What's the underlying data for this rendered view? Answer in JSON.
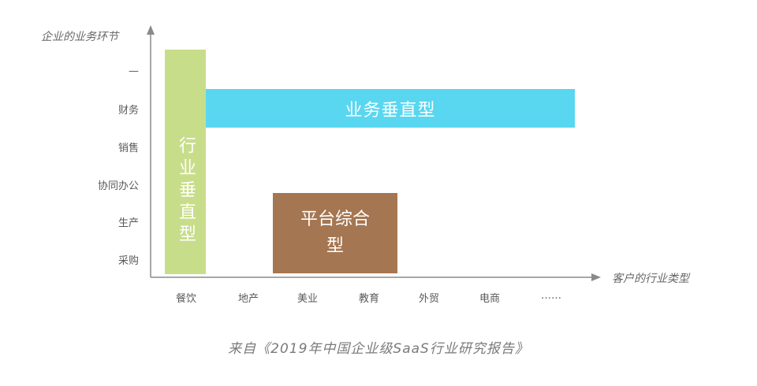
{
  "axes": {
    "y_title": "企业的业务环节",
    "x_title": "客户的行业类型",
    "y_labels": [
      "—",
      "财务",
      "销售",
      "协同办公",
      "生产",
      "采购"
    ],
    "x_labels": [
      "餐饮",
      "地产",
      "美业",
      "教育",
      "外贸",
      "电商",
      "……"
    ]
  },
  "blocks": {
    "industry_vertical": "行业垂直型",
    "business_vertical": "业务垂直型",
    "platform": "平台综合型"
  },
  "source": "来自《2019年中国企业级SaaS行业研究报告》",
  "colors": {
    "industry_vertical": "#c8dd8a",
    "business_vertical": "#59d6f0",
    "platform": "#a57652",
    "axis": "#8a8a8a"
  }
}
